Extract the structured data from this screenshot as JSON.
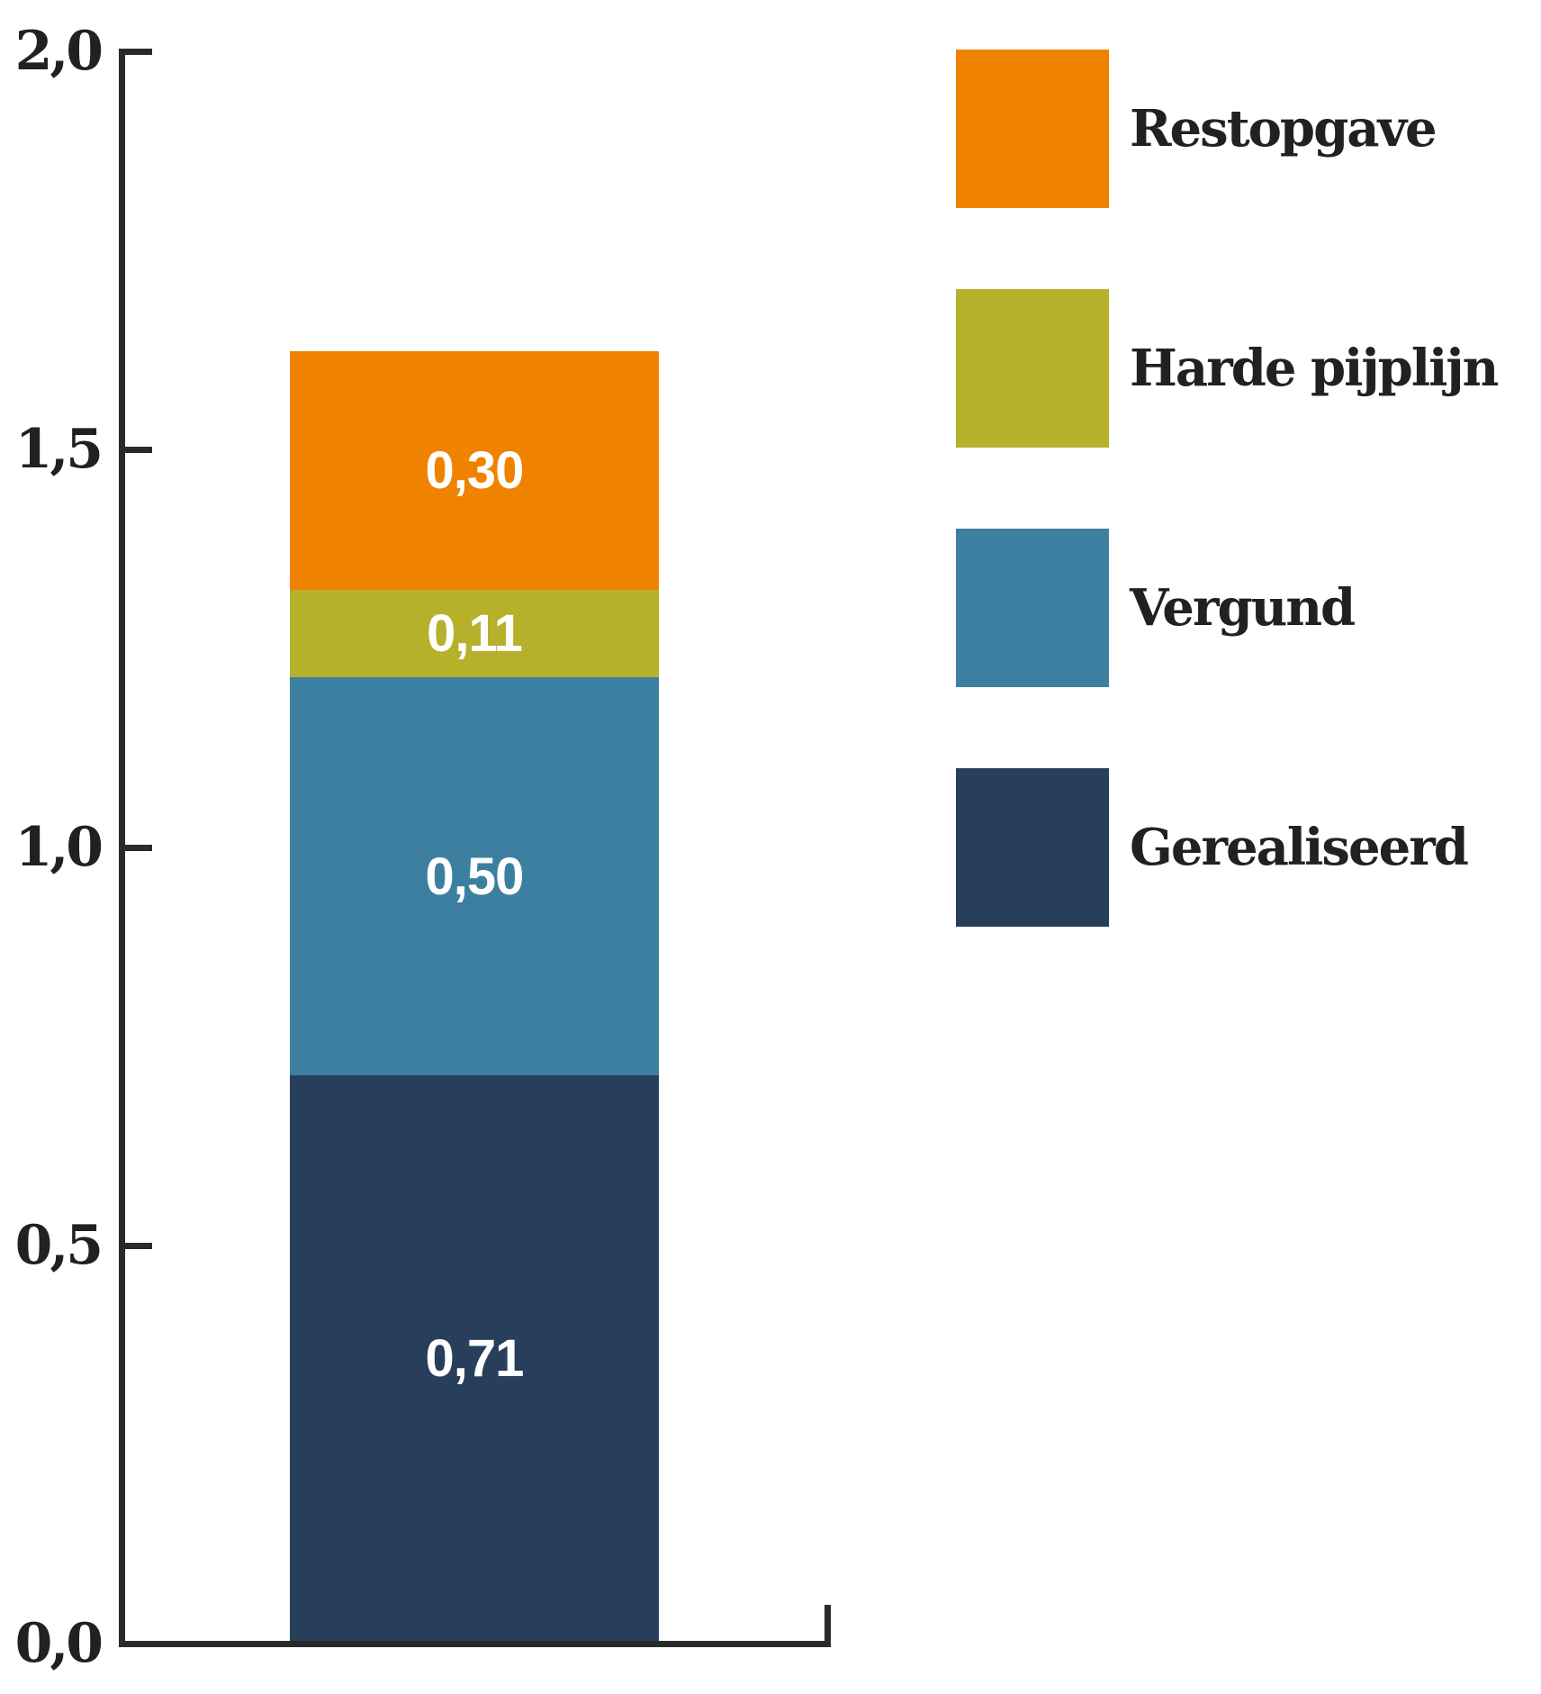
{
  "chart_data": {
    "type": "bar",
    "variant": "stacked-vertical-single-bar",
    "categories": [
      ""
    ],
    "series": [
      {
        "name": "Gerealiseerd",
        "value": 0.71,
        "value_label": "0,71",
        "color": "#283F5B"
      },
      {
        "name": "Vergund",
        "value": 0.5,
        "value_label": "0,50",
        "color": "#3D7FA1"
      },
      {
        "name": "Harde pijplijn",
        "value": 0.11,
        "value_label": "0,11",
        "color": "#B6B12B"
      },
      {
        "name": "Restopgave",
        "value": 0.3,
        "value_label": "0,30",
        "color": "#EF8300"
      }
    ],
    "ylim": [
      0.0,
      2.0
    ],
    "yticks": [
      {
        "value": 0.0,
        "label": "0,0"
      },
      {
        "value": 0.5,
        "label": "0,5"
      },
      {
        "value": 1.0,
        "label": "1,0"
      },
      {
        "value": 1.5,
        "label": "1,5"
      },
      {
        "value": 2.0,
        "label": "2,0"
      }
    ],
    "grid": false,
    "legend_position": "right",
    "legend_order": [
      "Restopgave",
      "Harde pijplijn",
      "Vergund",
      "Gerealiseerd"
    ]
  },
  "colors": {
    "axis": "#2a2a2a",
    "tick_label_text": "#212121",
    "legend_text": "#212121",
    "bar_value_text": "#ffffff",
    "background": "#ffffff"
  }
}
